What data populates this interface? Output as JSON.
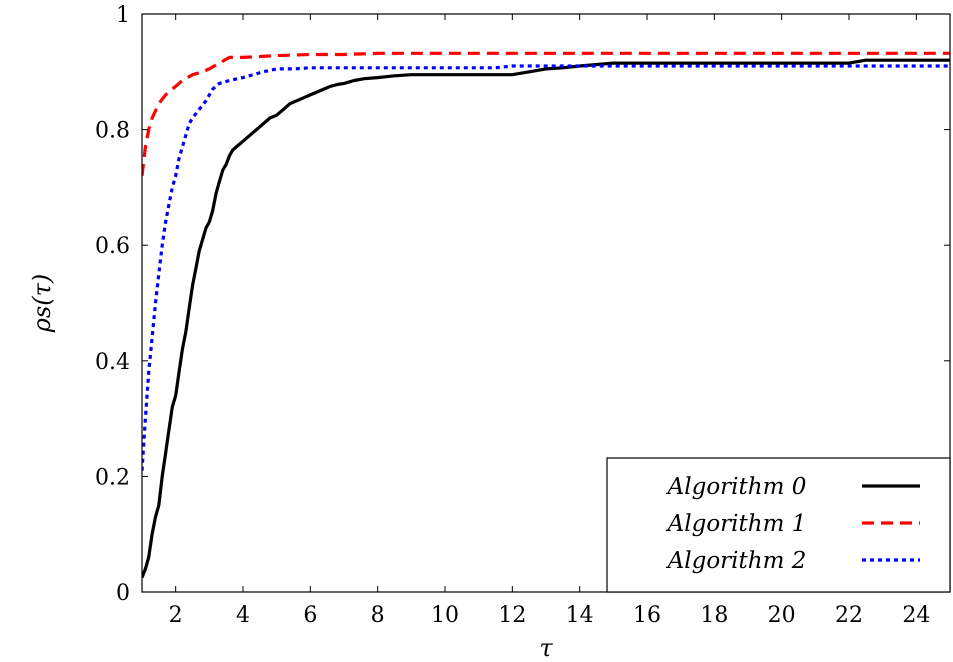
{
  "chart_data": {
    "type": "line",
    "title": "",
    "xlabel": "τ",
    "ylabel": "ρs(τ)",
    "xlim": [
      1,
      25
    ],
    "ylim": [
      0,
      1
    ],
    "xticks": [
      2,
      4,
      6,
      8,
      10,
      12,
      14,
      16,
      18,
      20,
      22,
      24
    ],
    "yticks": [
      0,
      0.2,
      0.4,
      0.6,
      0.8,
      1
    ],
    "ytick_labels": [
      "0",
      "0.2",
      "0.4",
      "0.6",
      "0.8",
      "1"
    ],
    "legend_position": "bottom-right",
    "grid": false,
    "series": [
      {
        "name": "Algorithm 0",
        "color": "#000000",
        "style": "solid",
        "x": [
          1.0,
          1.1,
          1.2,
          1.3,
          1.4,
          1.5,
          1.6,
          1.7,
          1.8,
          1.9,
          2.0,
          2.1,
          2.2,
          2.3,
          2.4,
          2.5,
          2.6,
          2.7,
          2.8,
          2.9,
          3.0,
          3.1,
          3.2,
          3.3,
          3.4,
          3.5,
          3.6,
          3.7,
          3.8,
          3.9,
          4.0,
          4.2,
          4.4,
          4.6,
          4.8,
          5.0,
          5.2,
          5.4,
          5.6,
          5.8,
          6.0,
          6.2,
          6.4,
          6.6,
          6.8,
          7.0,
          7.3,
          7.6,
          8.0,
          8.5,
          9.0,
          10.0,
          11.0,
          12.0,
          12.5,
          13.0,
          13.5,
          14.0,
          15.0,
          16.0,
          18.0,
          20.0,
          22.0,
          22.5,
          23.0,
          24.0,
          25.0
        ],
        "y": [
          0.025,
          0.04,
          0.06,
          0.1,
          0.13,
          0.15,
          0.2,
          0.24,
          0.28,
          0.32,
          0.34,
          0.38,
          0.42,
          0.45,
          0.49,
          0.53,
          0.56,
          0.59,
          0.61,
          0.63,
          0.64,
          0.66,
          0.69,
          0.71,
          0.73,
          0.74,
          0.755,
          0.765,
          0.77,
          0.775,
          0.78,
          0.79,
          0.8,
          0.81,
          0.82,
          0.825,
          0.835,
          0.845,
          0.85,
          0.855,
          0.86,
          0.865,
          0.87,
          0.875,
          0.878,
          0.88,
          0.885,
          0.888,
          0.89,
          0.893,
          0.895,
          0.895,
          0.895,
          0.895,
          0.9,
          0.905,
          0.907,
          0.91,
          0.915,
          0.915,
          0.915,
          0.915,
          0.915,
          0.92,
          0.92,
          0.92,
          0.92
        ]
      },
      {
        "name": "Algorithm 1",
        "color": "#ff0000",
        "style": "dashed",
        "x": [
          1.0,
          1.1,
          1.2,
          1.3,
          1.5,
          1.7,
          2.0,
          2.2,
          2.5,
          2.8,
          3.0,
          3.3,
          3.6,
          4.0,
          5.0,
          6.0,
          7.0,
          8.0,
          10.0,
          15.0,
          20.0,
          25.0
        ],
        "y": [
          0.72,
          0.77,
          0.8,
          0.82,
          0.845,
          0.86,
          0.875,
          0.885,
          0.895,
          0.9,
          0.905,
          0.915,
          0.925,
          0.925,
          0.928,
          0.93,
          0.93,
          0.932,
          0.932,
          0.932,
          0.932,
          0.932
        ]
      },
      {
        "name": "Algorithm 2",
        "color": "#0000ff",
        "style": "dotted",
        "x": [
          1.0,
          1.1,
          1.2,
          1.3,
          1.4,
          1.5,
          1.6,
          1.7,
          1.8,
          1.9,
          2.0,
          2.1,
          2.2,
          2.3,
          2.4,
          2.5,
          2.7,
          2.9,
          3.1,
          3.3,
          3.6,
          4.0,
          4.3,
          4.6,
          5.0,
          5.5,
          6.0,
          7.0,
          8.0,
          10.0,
          11.5,
          12.0,
          13.0,
          14.0,
          16.0,
          20.0,
          25.0
        ],
        "y": [
          0.21,
          0.3,
          0.38,
          0.44,
          0.5,
          0.55,
          0.6,
          0.64,
          0.67,
          0.7,
          0.72,
          0.75,
          0.77,
          0.79,
          0.81,
          0.82,
          0.835,
          0.85,
          0.87,
          0.88,
          0.885,
          0.89,
          0.895,
          0.9,
          0.905,
          0.905,
          0.907,
          0.907,
          0.907,
          0.907,
          0.907,
          0.91,
          0.91,
          0.91,
          0.91,
          0.91,
          0.91
        ]
      }
    ]
  }
}
